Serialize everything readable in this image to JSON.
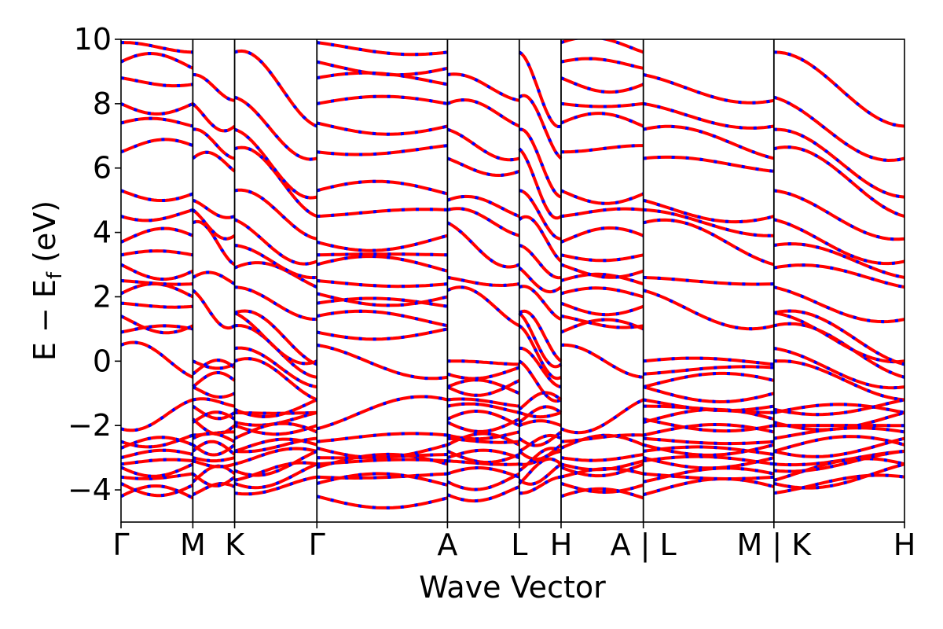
{
  "chart_data": {
    "type": "line",
    "title": "",
    "xlabel": "Wave Vector",
    "ylabel_parts": {
      "lead": "E − E",
      "sub": "f",
      "tail": " (eV)"
    },
    "ylim": [
      -5,
      10
    ],
    "y_ticks": [
      {
        "value": -4,
        "label": "−4"
      },
      {
        "value": -2,
        "label": "−2"
      },
      {
        "value": 0,
        "label": "0"
      },
      {
        "value": 2,
        "label": "2"
      },
      {
        "value": 4,
        "label": "4"
      },
      {
        "value": 6,
        "label": "6"
      },
      {
        "value": 8,
        "label": "8"
      },
      {
        "value": 10,
        "label": "10"
      }
    ],
    "x_ticks": [
      "Γ",
      "M",
      "K",
      "Γ",
      "A",
      "L",
      "H",
      "A | L",
      "M | K",
      "H"
    ],
    "path_distance": [
      0,
      0.55,
      0.87,
      1.5,
      2.5,
      3.05,
      3.37,
      4.0,
      5.0,
      6.0
    ],
    "grid": false,
    "legend": false,
    "colors": {
      "series_a": "#ff0000",
      "series_b": "#0000ff",
      "kpoint_line": "#000000"
    },
    "series": [
      {
        "style": "red-solid / blue-dashed overlay",
        "segments": [
          {
            "from": "Γ",
            "to": "M",
            "band_values_start": [
              -4.2,
              -3.6,
              -3.3,
              -3.0,
              -2.7,
              -2.5,
              -2.1,
              0.5,
              0.9,
              1.4,
              1.8,
              2.1,
              2.5,
              3.0,
              3.3,
              3.7,
              4.5,
              5.3,
              6.5,
              7.4,
              8.0,
              8.8,
              9.3,
              9.9
            ],
            "band_values_end": [
              -4.25,
              -3.5,
              -3.2,
              -2.9,
              -2.6,
              -2.3,
              -1.2,
              -0.5,
              1.0,
              1.1,
              1.7,
              2.0,
              2.4,
              2.8,
              3.3,
              3.9,
              4.7,
              5.2,
              6.7,
              7.3,
              8.0,
              8.6,
              9.1,
              9.6
            ]
          },
          {
            "from": "A",
            "to": "L",
            "band_values_start": [
              -4.15,
              -3.5,
              -3.0,
              -2.8,
              -2.3,
              -1.8,
              -1.2,
              -0.8,
              0.0,
              2.2,
              2.6,
              4.3,
              4.7,
              5.0,
              6.3,
              7.2,
              8.0,
              8.9
            ],
            "band_values_end": [
              -3.9,
              -3.6,
              -3.0,
              -2.9,
              -2.2,
              -2.0,
              -1.4,
              -0.6,
              -0.1,
              1.1,
              2.4,
              3.0,
              3.9,
              4.5,
              5.9,
              6.3,
              7.3,
              8.1
            ]
          },
          {
            "from": "M | K",
            "to": "H",
            "band_values_start": [
              -4.1,
              -3.8,
              -3.2,
              -2.8,
              -2.0,
              -1.9,
              0.0,
              1.1,
              1.5,
              2.3,
              2.9,
              3.6,
              4.4,
              5.3,
              6.6,
              7.2,
              8.2,
              9.6
            ],
            "band_values_end": [
              -3.6,
              -3.2,
              -2.8,
              -2.6,
              -2.0,
              -1.6,
              -1.2,
              -0.5,
              0.0,
              1.3,
              2.3,
              2.6,
              3.1,
              3.8,
              4.5,
              5.1,
              6.3,
              7.3
            ]
          }
        ]
      }
    ]
  }
}
